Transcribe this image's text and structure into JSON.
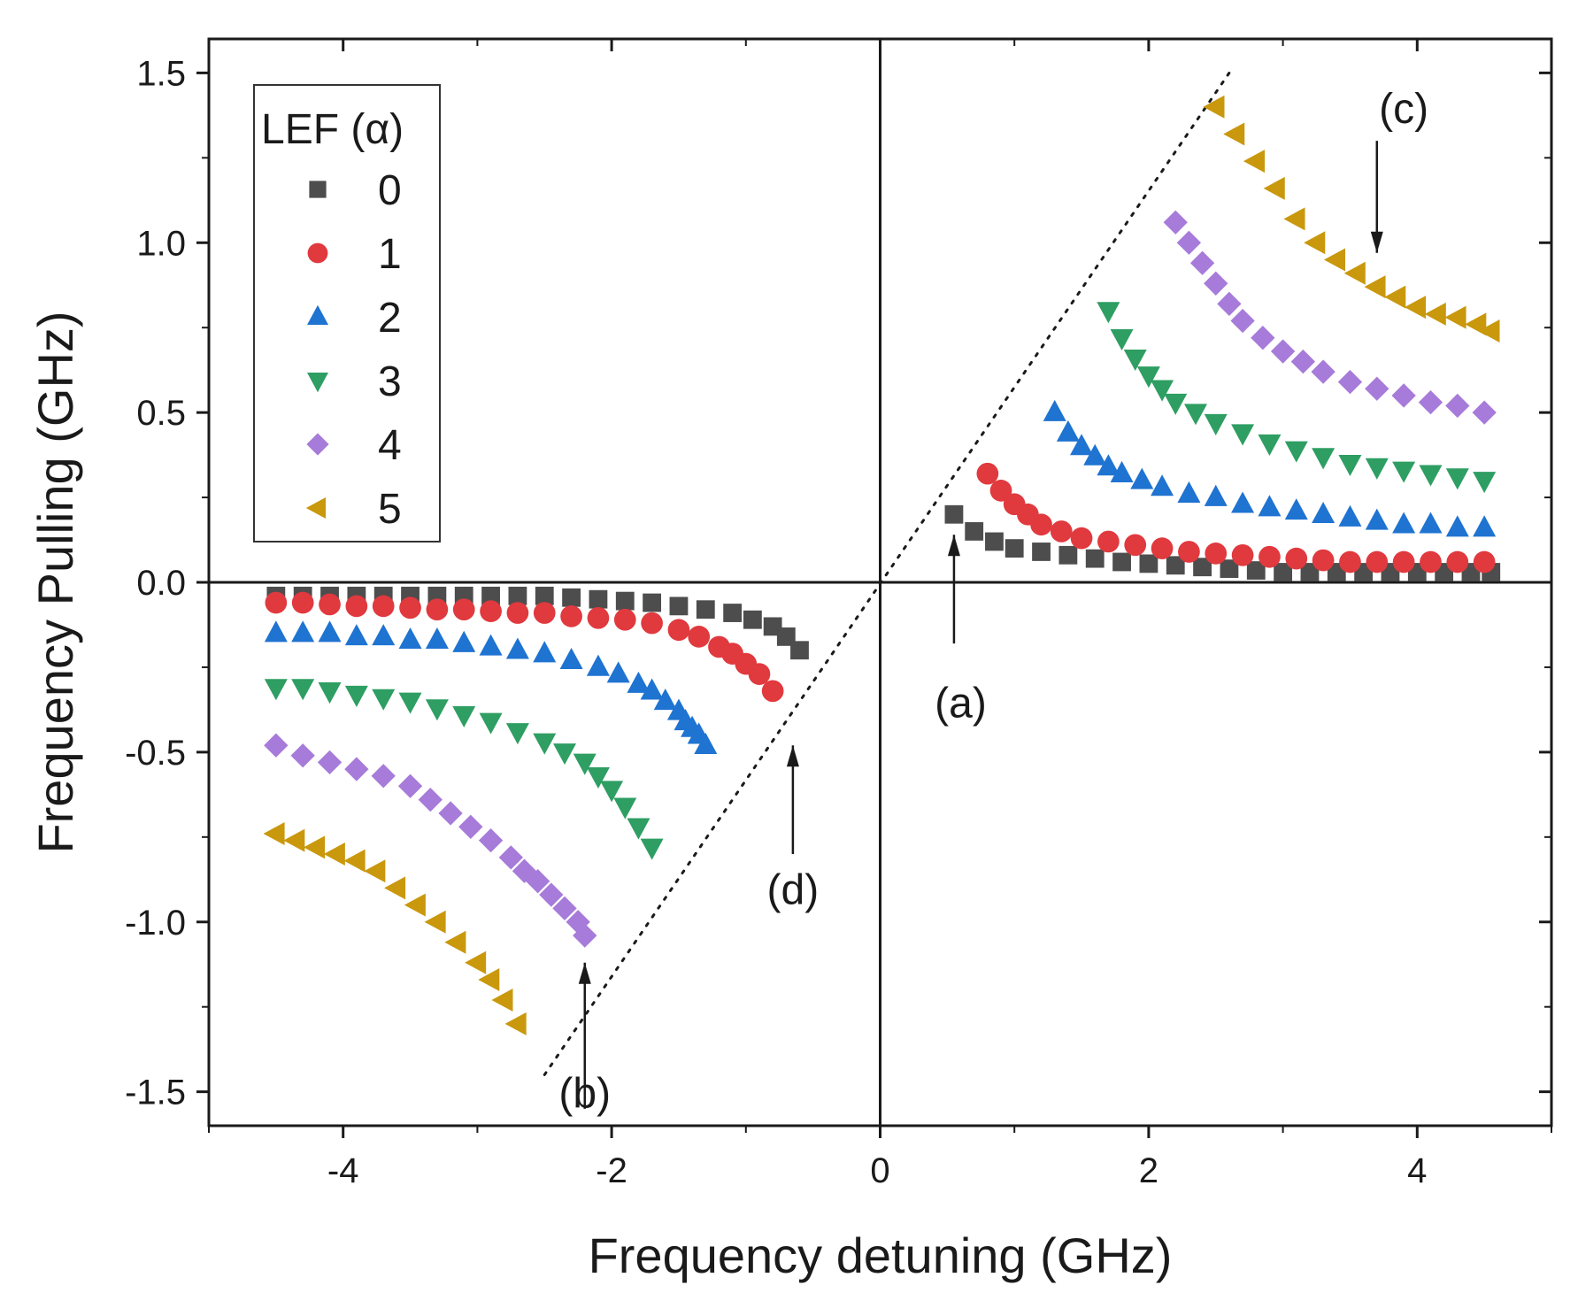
{
  "chart_data": {
    "type": "scatter",
    "title": "",
    "xlabel": "Frequency detuning (GHz)",
    "ylabel": "Frequency Pulling (GHz)",
    "xlim": [
      -5,
      5
    ],
    "ylim": [
      -1.6,
      1.6
    ],
    "x_ticks": [
      -4,
      -2,
      0,
      2,
      4
    ],
    "x_tick_labels": [
      "-4",
      "-2",
      "0",
      "2",
      "4"
    ],
    "y_ticks": [
      -1.5,
      -1.0,
      -0.5,
      0.0,
      0.5,
      1.0,
      1.5
    ],
    "y_tick_labels": [
      "-1.5",
      "-1.0",
      "-0.5",
      "0.0",
      "0.5",
      "1.0",
      "1.5"
    ],
    "grid": false,
    "legend": {
      "title": "LEF (α)",
      "placement": "top-left"
    },
    "series": [
      {
        "name": "0",
        "marker": "square",
        "color": "#4d4d4d",
        "neg_end": [
          -0.6,
          -0.2
        ],
        "pos_start": [
          0.55,
          0.2
        ],
        "x_neg": [
          -4.5,
          -4.3,
          -4.1,
          -3.9,
          -3.7,
          -3.5,
          -3.3,
          -3.1,
          -2.9,
          -2.7,
          -2.5,
          -2.3,
          -2.1,
          -1.9,
          -1.7,
          -1.5,
          -1.3,
          -1.1,
          -0.95,
          -0.8,
          -0.7,
          -0.6
        ],
        "y_neg": [
          -0.04,
          -0.04,
          -0.04,
          -0.04,
          -0.04,
          -0.04,
          -0.04,
          -0.04,
          -0.04,
          -0.04,
          -0.04,
          -0.045,
          -0.05,
          -0.055,
          -0.06,
          -0.07,
          -0.08,
          -0.09,
          -0.11,
          -0.13,
          -0.16,
          -0.2
        ],
        "x_pos": [
          0.55,
          0.7,
          0.85,
          1.0,
          1.2,
          1.4,
          1.6,
          1.8,
          2.0,
          2.2,
          2.4,
          2.6,
          2.8,
          3.0,
          3.2,
          3.4,
          3.6,
          3.8,
          4.0,
          4.2,
          4.4,
          4.55
        ],
        "y_pos": [
          0.2,
          0.15,
          0.12,
          0.1,
          0.09,
          0.08,
          0.07,
          0.06,
          0.055,
          0.05,
          0.045,
          0.04,
          0.035,
          0.03,
          0.03,
          0.03,
          0.03,
          0.03,
          0.03,
          0.03,
          0.03,
          0.03
        ]
      },
      {
        "name": "1",
        "marker": "circle",
        "color": "#e0393e",
        "neg_end": [
          -0.8,
          -0.32
        ],
        "pos_start": [
          0.8,
          0.32
        ],
        "x_neg": [
          -4.5,
          -4.3,
          -4.1,
          -3.9,
          -3.7,
          -3.5,
          -3.3,
          -3.1,
          -2.9,
          -2.7,
          -2.5,
          -2.3,
          -2.1,
          -1.9,
          -1.7,
          -1.5,
          -1.35,
          -1.2,
          -1.1,
          -1.0,
          -0.9,
          -0.8
        ],
        "y_neg": [
          -0.06,
          -0.06,
          -0.065,
          -0.07,
          -0.07,
          -0.075,
          -0.08,
          -0.08,
          -0.085,
          -0.09,
          -0.09,
          -0.1,
          -0.105,
          -0.11,
          -0.12,
          -0.14,
          -0.16,
          -0.19,
          -0.21,
          -0.24,
          -0.27,
          -0.32
        ],
        "x_pos": [
          0.8,
          0.9,
          1.0,
          1.1,
          1.2,
          1.35,
          1.5,
          1.7,
          1.9,
          2.1,
          2.3,
          2.5,
          2.7,
          2.9,
          3.1,
          3.3,
          3.5,
          3.7,
          3.9,
          4.1,
          4.3,
          4.5
        ],
        "y_pos": [
          0.32,
          0.27,
          0.23,
          0.2,
          0.17,
          0.15,
          0.13,
          0.12,
          0.11,
          0.1,
          0.09,
          0.085,
          0.08,
          0.075,
          0.07,
          0.065,
          0.06,
          0.06,
          0.06,
          0.06,
          0.06,
          0.06
        ]
      },
      {
        "name": "2",
        "marker": "triangle-up",
        "color": "#1f73d1",
        "neg_end": [
          -1.3,
          -0.48
        ],
        "pos_start": [
          1.3,
          0.5
        ],
        "x_neg": [
          -4.5,
          -4.3,
          -4.1,
          -3.9,
          -3.7,
          -3.5,
          -3.3,
          -3.1,
          -2.9,
          -2.7,
          -2.5,
          -2.3,
          -2.1,
          -1.95,
          -1.8,
          -1.7,
          -1.6,
          -1.5,
          -1.45,
          -1.4,
          -1.35,
          -1.3
        ],
        "y_neg": [
          -0.15,
          -0.15,
          -0.15,
          -0.16,
          -0.16,
          -0.17,
          -0.17,
          -0.18,
          -0.19,
          -0.2,
          -0.21,
          -0.23,
          -0.25,
          -0.27,
          -0.3,
          -0.32,
          -0.35,
          -0.38,
          -0.41,
          -0.43,
          -0.45,
          -0.48
        ],
        "x_pos": [
          1.3,
          1.4,
          1.5,
          1.6,
          1.7,
          1.8,
          1.95,
          2.1,
          2.3,
          2.5,
          2.7,
          2.9,
          3.1,
          3.3,
          3.5,
          3.7,
          3.9,
          4.1,
          4.3,
          4.5
        ],
        "y_pos": [
          0.5,
          0.44,
          0.4,
          0.37,
          0.34,
          0.32,
          0.3,
          0.28,
          0.26,
          0.25,
          0.23,
          0.22,
          0.21,
          0.2,
          0.19,
          0.18,
          0.17,
          0.17,
          0.16,
          0.16
        ]
      },
      {
        "name": "3",
        "marker": "triangle-down",
        "color": "#2e9e63",
        "neg_end": [
          -1.7,
          -0.78
        ],
        "pos_start": [
          1.7,
          0.8
        ],
        "x_neg": [
          -4.5,
          -4.3,
          -4.1,
          -3.9,
          -3.7,
          -3.5,
          -3.3,
          -3.1,
          -2.9,
          -2.7,
          -2.5,
          -2.35,
          -2.2,
          -2.1,
          -2.0,
          -1.9,
          -1.8,
          -1.7
        ],
        "y_neg": [
          -0.31,
          -0.31,
          -0.32,
          -0.33,
          -0.34,
          -0.35,
          -0.37,
          -0.39,
          -0.41,
          -0.44,
          -0.47,
          -0.5,
          -0.53,
          -0.57,
          -0.61,
          -0.66,
          -0.72,
          -0.78
        ],
        "x_pos": [
          1.7,
          1.8,
          1.9,
          2.0,
          2.1,
          2.2,
          2.35,
          2.5,
          2.7,
          2.9,
          3.1,
          3.3,
          3.5,
          3.7,
          3.9,
          4.1,
          4.3,
          4.5
        ],
        "y_pos": [
          0.8,
          0.72,
          0.66,
          0.61,
          0.57,
          0.53,
          0.5,
          0.47,
          0.44,
          0.41,
          0.39,
          0.37,
          0.35,
          0.34,
          0.33,
          0.32,
          0.31,
          0.3
        ]
      },
      {
        "name": "4",
        "marker": "diamond",
        "color": "#a77bd9",
        "neg_end": [
          -2.2,
          -1.04
        ],
        "pos_start": [
          2.2,
          1.06
        ],
        "x_neg": [
          -4.5,
          -4.3,
          -4.1,
          -3.9,
          -3.7,
          -3.5,
          -3.35,
          -3.2,
          -3.05,
          -2.9,
          -2.75,
          -2.65,
          -2.55,
          -2.45,
          -2.35,
          -2.25,
          -2.2
        ],
        "y_neg": [
          -0.48,
          -0.51,
          -0.53,
          -0.55,
          -0.57,
          -0.6,
          -0.64,
          -0.68,
          -0.72,
          -0.76,
          -0.81,
          -0.85,
          -0.88,
          -0.92,
          -0.96,
          -1.0,
          -1.04
        ],
        "x_pos": [
          2.2,
          2.3,
          2.4,
          2.5,
          2.6,
          2.7,
          2.85,
          3.0,
          3.15,
          3.3,
          3.5,
          3.7,
          3.9,
          4.1,
          4.3,
          4.5
        ],
        "y_pos": [
          1.06,
          1.0,
          0.94,
          0.88,
          0.82,
          0.77,
          0.72,
          0.68,
          0.65,
          0.62,
          0.59,
          0.57,
          0.55,
          0.53,
          0.52,
          0.5
        ]
      },
      {
        "name": "5",
        "marker": "triangle-left",
        "color": "#c9980c",
        "neg_end": [
          -2.7,
          -1.3
        ],
        "pos_start": [
          2.5,
          1.4
        ],
        "x_neg": [
          -4.5,
          -4.35,
          -4.2,
          -4.05,
          -3.9,
          -3.75,
          -3.6,
          -3.45,
          -3.3,
          -3.15,
          -3.0,
          -2.9,
          -2.8,
          -2.7
        ],
        "y_neg": [
          -0.74,
          -0.76,
          -0.78,
          -0.8,
          -0.82,
          -0.85,
          -0.9,
          -0.95,
          -1.0,
          -1.06,
          -1.12,
          -1.17,
          -1.23,
          -1.3
        ],
        "x_pos": [
          2.5,
          2.65,
          2.8,
          2.95,
          3.1,
          3.25,
          3.4,
          3.55,
          3.7,
          3.85,
          4.0,
          4.15,
          4.3,
          4.45,
          4.55
        ],
        "y_pos": [
          1.4,
          1.32,
          1.24,
          1.16,
          1.07,
          1.0,
          0.95,
          0.91,
          0.87,
          0.84,
          0.81,
          0.79,
          0.78,
          0.76,
          0.74
        ]
      }
    ],
    "diagonal": {
      "style": "dotted",
      "x": [
        -2.5,
        2.6
      ],
      "y": [
        -1.45,
        1.5
      ]
    },
    "annotations": [
      {
        "label": "(a)",
        "arrow_from": [
          0.55,
          -0.18
        ],
        "arrow_to": [
          0.55,
          0.14
        ],
        "text_at": [
          0.6,
          -0.35
        ]
      },
      {
        "label": "(b)",
        "arrow_from": [
          -2.2,
          -1.55
        ],
        "arrow_to": [
          -2.2,
          -1.12
        ],
        "text_at": [
          -2.2,
          -1.5
        ]
      },
      {
        "label": "(c)",
        "arrow_from": [
          3.7,
          1.3
        ],
        "arrow_to": [
          3.7,
          0.97
        ],
        "text_at": [
          3.9,
          1.4
        ]
      },
      {
        "label": "(d)",
        "arrow_from": [
          -0.65,
          -0.8
        ],
        "arrow_to": [
          -0.65,
          -0.48
        ],
        "text_at": [
          -0.65,
          -0.9
        ]
      }
    ]
  }
}
